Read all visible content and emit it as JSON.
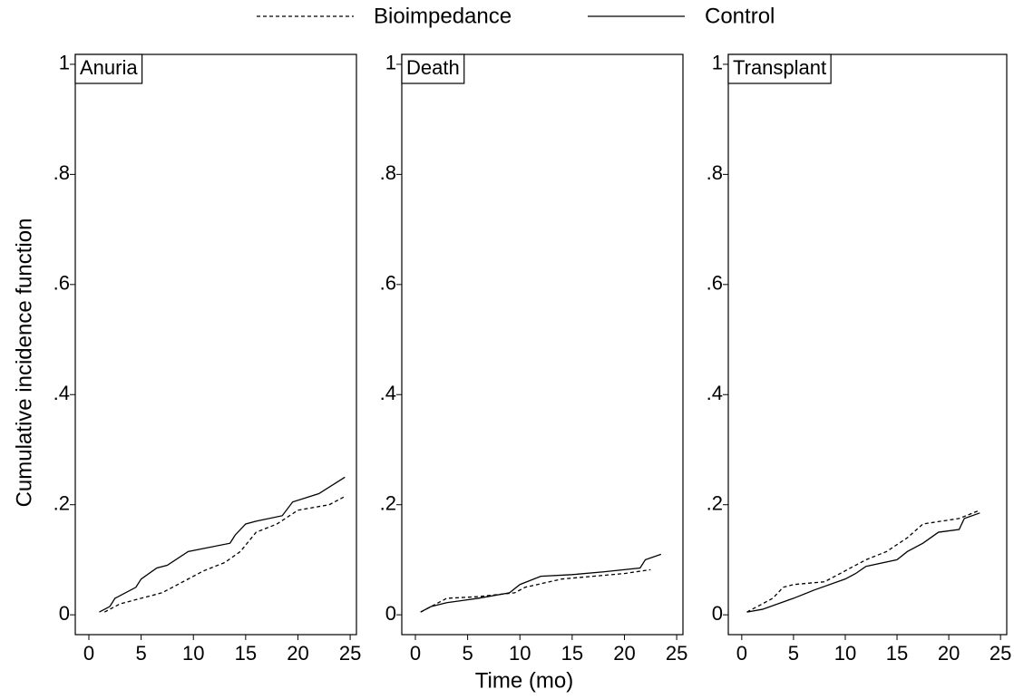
{
  "chart_data": [
    {
      "type": "line",
      "title": "Anuria",
      "ylabel": "Cumulative incidence function",
      "xlim": [
        -1.3,
        25.6
      ],
      "xticks": [
        0,
        5,
        10,
        15,
        20,
        25
      ],
      "ylim": [
        -0.036,
        1.018
      ],
      "yticks": [
        0,
        {
          "value": 0.2,
          "label": ".2"
        },
        {
          "value": 0.4,
          "label": ".4"
        },
        {
          "value": 0.6,
          "label": ".6"
        },
        {
          "value": 0.8,
          "label": ".8"
        },
        1
      ],
      "series": [
        {
          "name": "Bioimpedance",
          "color": "#000000",
          "linestyle": "dashed",
          "x": [
            1.5,
            3,
            5,
            7,
            9,
            11,
            13,
            14.5,
            16,
            18,
            20,
            23,
            24.5
          ],
          "values": [
            0.005,
            0.02,
            0.03,
            0.04,
            0.06,
            0.08,
            0.095,
            0.115,
            0.15,
            0.165,
            0.19,
            0.2,
            0.215
          ]
        },
        {
          "name": "Control",
          "color": "#000000",
          "linestyle": "solid",
          "x": [
            1,
            2,
            2.5,
            4.5,
            5,
            6.5,
            7.5,
            9.5,
            13.5,
            14,
            15,
            16,
            18.5,
            19.5,
            22,
            24.5
          ],
          "values": [
            0.005,
            0.015,
            0.03,
            0.05,
            0.065,
            0.085,
            0.09,
            0.115,
            0.13,
            0.145,
            0.165,
            0.17,
            0.18,
            0.205,
            0.22,
            0.25
          ]
        }
      ]
    },
    {
      "type": "line",
      "title": "Death",
      "xlabel": "Time (mo)",
      "xlim": [
        -1.3,
        25.6
      ],
      "xticks": [
        0,
        5,
        10,
        15,
        20,
        25
      ],
      "ylim": [
        -0.036,
        1.018
      ],
      "yticks": [
        0,
        {
          "value": 0.2,
          "label": ".2"
        },
        {
          "value": 0.4,
          "label": ".4"
        },
        {
          "value": 0.6,
          "label": ".6"
        },
        {
          "value": 0.8,
          "label": ".8"
        },
        1
      ],
      "series": [
        {
          "name": "Bioimpedance",
          "color": "#000000",
          "linestyle": "dashed",
          "x": [
            0.5,
            2,
            3,
            6,
            9.5,
            10.5,
            14,
            17,
            20,
            22.5
          ],
          "values": [
            0.005,
            0.02,
            0.03,
            0.033,
            0.04,
            0.05,
            0.065,
            0.07,
            0.075,
            0.082
          ]
        },
        {
          "name": "Control",
          "color": "#000000",
          "linestyle": "solid",
          "x": [
            0.5,
            1.5,
            3,
            6,
            9,
            10,
            12,
            15,
            18,
            21.5,
            22,
            23.5
          ],
          "values": [
            0.005,
            0.015,
            0.022,
            0.03,
            0.04,
            0.055,
            0.07,
            0.073,
            0.078,
            0.085,
            0.1,
            0.11
          ]
        }
      ]
    },
    {
      "type": "line",
      "title": "Transplant",
      "xlim": [
        -1.3,
        25.6
      ],
      "xticks": [
        0,
        5,
        10,
        15,
        20,
        25
      ],
      "ylim": [
        -0.036,
        1.018
      ],
      "yticks": [
        0,
        {
          "value": 0.2,
          "label": ".2"
        },
        {
          "value": 0.4,
          "label": ".4"
        },
        {
          "value": 0.6,
          "label": ".6"
        },
        {
          "value": 0.8,
          "label": ".8"
        },
        1
      ],
      "series": [
        {
          "name": "Bioimpedance",
          "color": "#000000",
          "linestyle": "dashed",
          "x": [
            0.5,
            3,
            4,
            5,
            8,
            10,
            12,
            14,
            16,
            17.5,
            21,
            23
          ],
          "values": [
            0.005,
            0.03,
            0.05,
            0.055,
            0.06,
            0.08,
            0.1,
            0.115,
            0.14,
            0.165,
            0.175,
            0.19
          ]
        },
        {
          "name": "Control",
          "color": "#000000",
          "linestyle": "solid",
          "x": [
            0.5,
            2,
            5,
            7,
            10,
            11,
            12,
            15,
            16,
            17.5,
            19,
            21,
            21.5,
            23
          ],
          "values": [
            0.005,
            0.01,
            0.03,
            0.045,
            0.065,
            0.075,
            0.088,
            0.1,
            0.115,
            0.13,
            0.15,
            0.155,
            0.175,
            0.185
          ]
        }
      ]
    }
  ]
}
